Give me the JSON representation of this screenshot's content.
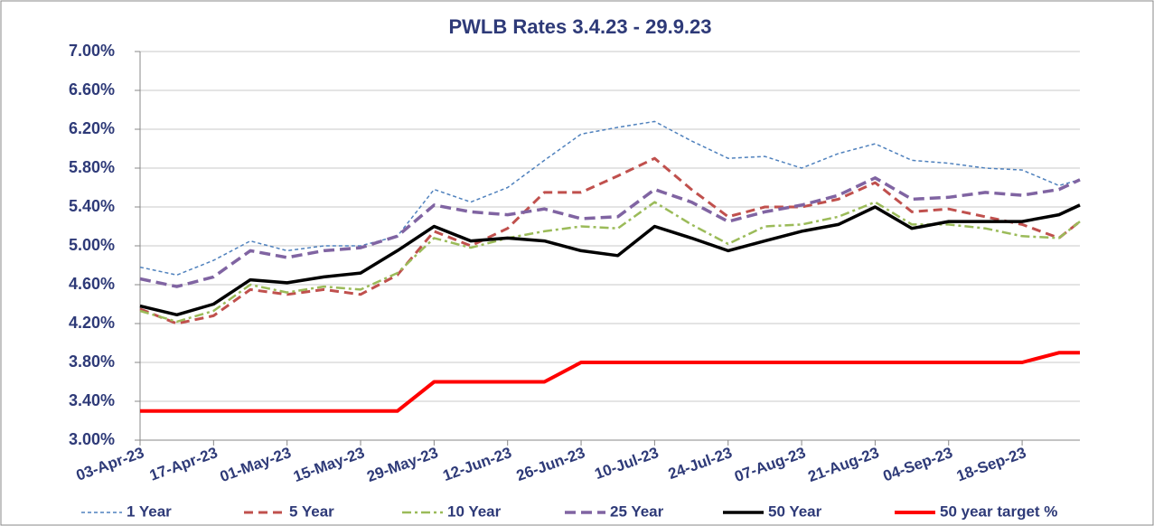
{
  "chart_data": {
    "type": "line",
    "title": "PWLB Rates 3.4.23 - 29.9.23",
    "x": [
      "03-Apr-23",
      "10-Apr-23",
      "17-Apr-23",
      "24-Apr-23",
      "01-May-23",
      "08-May-23",
      "15-May-23",
      "22-May-23",
      "29-May-23",
      "05-Jun-23",
      "12-Jun-23",
      "19-Jun-23",
      "26-Jun-23",
      "03-Jul-23",
      "10-Jul-23",
      "17-Jul-23",
      "24-Jul-23",
      "31-Jul-23",
      "07-Aug-23",
      "14-Aug-23",
      "21-Aug-23",
      "28-Aug-23",
      "04-Sep-23",
      "11-Sep-23",
      "18-Sep-23",
      "25-Sep-23",
      "29-Sep-23"
    ],
    "xlim": [
      "03-Apr-23",
      "29-Sep-23"
    ],
    "xticks": [
      "03-Apr-23",
      "17-Apr-23",
      "01-May-23",
      "15-May-23",
      "29-May-23",
      "12-Jun-23",
      "26-Jun-23",
      "10-Jul-23",
      "24-Jul-23",
      "07-Aug-23",
      "21-Aug-23",
      "04-Sep-23",
      "18-Sep-23"
    ],
    "ylim": [
      3.0,
      7.0
    ],
    "yticks": [
      {
        "value": 3.0,
        "label": "3.00%"
      },
      {
        "value": 3.4,
        "label": "3.40%"
      },
      {
        "value": 3.8,
        "label": "3.80%"
      },
      {
        "value": 4.2,
        "label": "4.20%"
      },
      {
        "value": 4.6,
        "label": "4.60%"
      },
      {
        "value": 5.0,
        "label": "5.00%"
      },
      {
        "value": 5.4,
        "label": "5.40%"
      },
      {
        "value": 5.8,
        "label": "5.80%"
      },
      {
        "value": 6.2,
        "label": "6.20%"
      },
      {
        "value": 6.6,
        "label": "6.60%"
      },
      {
        "value": 7.0,
        "label": "7.00%"
      }
    ],
    "grid": true,
    "series": [
      {
        "name": "1 Year",
        "color": "#4f81bd",
        "values": [
          4.78,
          4.7,
          4.85,
          5.05,
          4.95,
          5.0,
          5.0,
          5.1,
          5.58,
          5.45,
          5.6,
          5.88,
          6.15,
          6.22,
          6.28,
          6.08,
          5.9,
          5.92,
          5.8,
          5.95,
          6.05,
          5.88,
          5.85,
          5.8,
          5.78,
          5.62,
          5.68
        ]
      },
      {
        "name": "5 Year",
        "color": "#c0504d",
        "values": [
          4.35,
          4.2,
          4.28,
          4.55,
          4.5,
          4.55,
          4.5,
          4.7,
          5.15,
          5.0,
          5.18,
          5.55,
          5.55,
          5.72,
          5.9,
          5.58,
          5.3,
          5.4,
          5.4,
          5.48,
          5.65,
          5.35,
          5.38,
          5.3,
          5.22,
          5.08,
          5.25
        ]
      },
      {
        "name": "10 Year",
        "color": "#9bbb59",
        "values": [
          4.33,
          4.22,
          4.33,
          4.6,
          4.52,
          4.58,
          4.55,
          4.72,
          5.08,
          4.98,
          5.08,
          5.15,
          5.2,
          5.18,
          5.45,
          5.22,
          5.02,
          5.2,
          5.22,
          5.3,
          5.45,
          5.22,
          5.22,
          5.18,
          5.1,
          5.08,
          5.25
        ]
      },
      {
        "name": "25 Year",
        "color": "#8064a2",
        "values": [
          4.66,
          4.58,
          4.68,
          4.95,
          4.88,
          4.95,
          4.98,
          5.1,
          5.42,
          5.35,
          5.32,
          5.38,
          5.28,
          5.3,
          5.58,
          5.45,
          5.25,
          5.35,
          5.42,
          5.52,
          5.7,
          5.48,
          5.5,
          5.55,
          5.52,
          5.58,
          5.68
        ]
      },
      {
        "name": "50 Year",
        "color": "#000000",
        "values": [
          4.38,
          4.29,
          4.4,
          4.65,
          4.62,
          4.68,
          4.72,
          4.95,
          5.2,
          5.05,
          5.08,
          5.05,
          4.95,
          4.9,
          5.2,
          5.08,
          4.95,
          5.05,
          5.15,
          5.22,
          5.4,
          5.18,
          5.25,
          5.25,
          5.25,
          5.32,
          5.42
        ]
      },
      {
        "name": "50 year target %",
        "color": "#ff0000",
        "values": [
          3.3,
          3.3,
          3.3,
          3.3,
          3.3,
          3.3,
          3.3,
          3.3,
          3.6,
          3.6,
          3.6,
          3.6,
          3.8,
          3.8,
          3.8,
          3.8,
          3.8,
          3.8,
          3.8,
          3.8,
          3.8,
          3.8,
          3.8,
          3.8,
          3.8,
          3.9,
          3.9
        ]
      }
    ]
  }
}
